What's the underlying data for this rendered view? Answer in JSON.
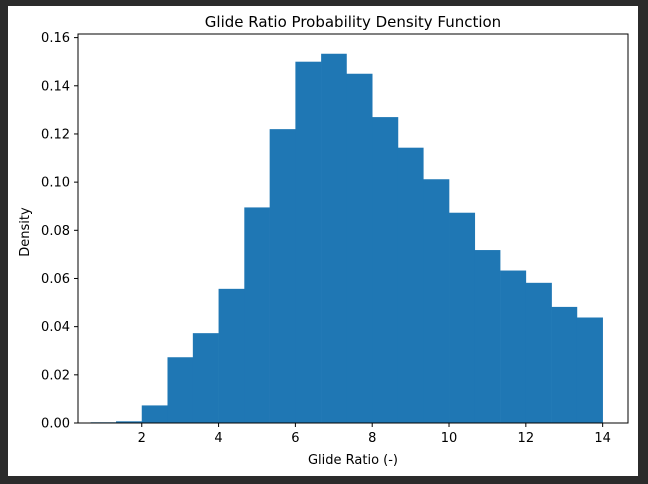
{
  "colors": {
    "background": "#2b2b2b",
    "panel": "#ffffff",
    "bar": "#1f77b4",
    "axis": "#000000"
  },
  "chart_data": {
    "type": "bar",
    "title": "Glide Ratio Probability Density Function",
    "xlabel": "Glide Ratio (-)",
    "ylabel": "Density",
    "xlim": [
      0.34,
      14.66
    ],
    "ylim": [
      0,
      0.1615
    ],
    "xticks": [
      2,
      4,
      6,
      8,
      10,
      12,
      14
    ],
    "xtick_labels": [
      "2",
      "4",
      "6",
      "8",
      "10",
      "12",
      "14"
    ],
    "yticks": [
      0,
      0.02,
      0.04,
      0.06,
      0.08,
      0.1,
      0.12,
      0.14,
      0.16
    ],
    "ytick_labels": [
      "0.00",
      "0.02",
      "0.04",
      "0.06",
      "0.08",
      "0.10",
      "0.12",
      "0.14",
      "0.16"
    ],
    "bins": {
      "edges": [
        0.67,
        1.33,
        2.0,
        2.67,
        3.33,
        4.0,
        4.67,
        5.33,
        6.0,
        6.67,
        7.33,
        8.0,
        8.67,
        9.33,
        10.0,
        10.67,
        11.33,
        12.0,
        12.67,
        13.33,
        14.0
      ],
      "densities": [
        0.0003,
        0.0007,
        0.0073,
        0.0273,
        0.0373,
        0.0557,
        0.0895,
        0.122,
        0.15,
        0.1533,
        0.145,
        0.127,
        0.1143,
        0.1012,
        0.0873,
        0.0718,
        0.0633,
        0.0582,
        0.0482,
        0.0438
      ]
    },
    "grid": false,
    "legend": "none"
  }
}
